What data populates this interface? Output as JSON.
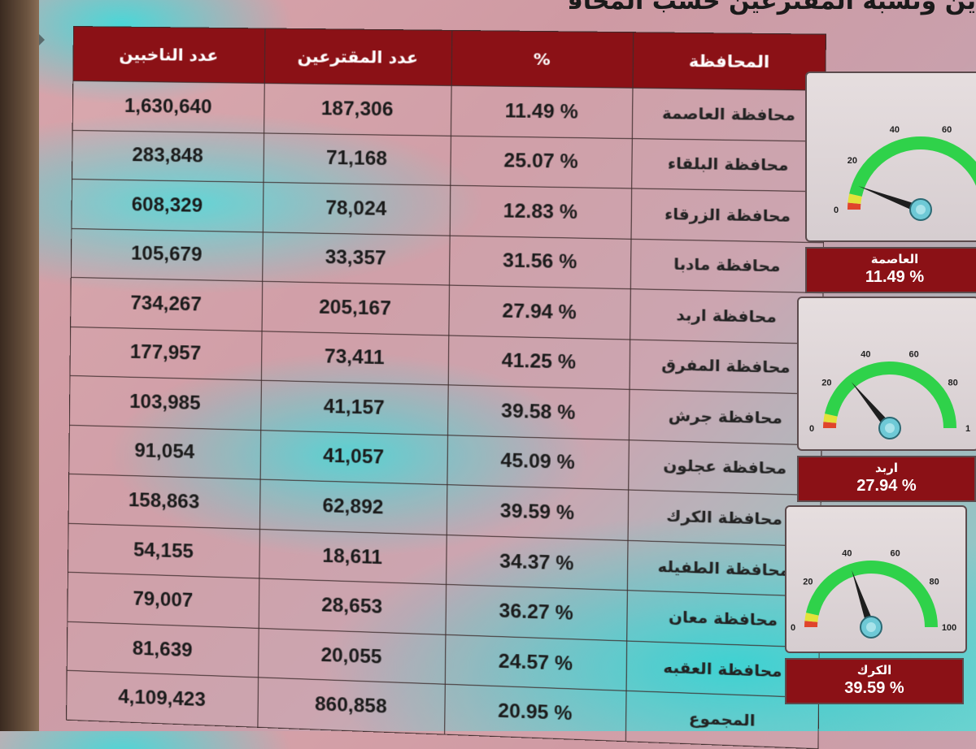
{
  "title_fragment": "ين ونسبة المقترعين حسب المحافظ",
  "table": {
    "headers": {
      "governorate": "المحافظة",
      "percent": "%",
      "voters": "عدد المقترعين",
      "registered": "عدد الناخبين"
    },
    "rows": [
      {
        "governorate": "محافظة العاصمة",
        "percent": "11.49 %",
        "voters": "187,306",
        "registered": "1,630,640"
      },
      {
        "governorate": "محافظة البلقاء",
        "percent": "25.07 %",
        "voters": "71,168",
        "registered": "283,848"
      },
      {
        "governorate": "محافظة الزرقاء",
        "percent": "12.83 %",
        "voters": "78,024",
        "registered": "608,329"
      },
      {
        "governorate": "محافظة مادبا",
        "percent": "31.56 %",
        "voters": "33,357",
        "registered": "105,679"
      },
      {
        "governorate": "محافظة اربد",
        "percent": "27.94 %",
        "voters": "205,167",
        "registered": "734,267"
      },
      {
        "governorate": "محافظة المفرق",
        "percent": "41.25 %",
        "voters": "73,411",
        "registered": "177,957"
      },
      {
        "governorate": "محافظة جرش",
        "percent": "39.58 %",
        "voters": "41,157",
        "registered": "103,985"
      },
      {
        "governorate": "محافظة عجلون",
        "percent": "45.09 %",
        "voters": "41,057",
        "registered": "91,054"
      },
      {
        "governorate": "محافظة الكرك",
        "percent": "39.59 %",
        "voters": "62,892",
        "registered": "158,863"
      },
      {
        "governorate": "محافظة الطفيله",
        "percent": "34.37 %",
        "voters": "18,611",
        "registered": "54,155"
      },
      {
        "governorate": "محافظة معان",
        "percent": "36.27 %",
        "voters": "28,653",
        "registered": "79,007"
      },
      {
        "governorate": "محافظة العقبه",
        "percent": "24.57 %",
        "voters": "20,055",
        "registered": "81,639"
      },
      {
        "governorate": "المجموع",
        "percent": "20.95 %",
        "voters": "860,858",
        "registered": "4,109,423"
      }
    ]
  },
  "gauges": [
    {
      "name": "العاصمة",
      "percent_label": "11.49 %",
      "value": 11.49,
      "ticks": [
        "0",
        "20",
        "40",
        "60"
      ]
    },
    {
      "name": "اربد",
      "percent_label": "27.94 %",
      "value": 27.94,
      "ticks": [
        "0",
        "20",
        "40",
        "60",
        "80",
        "1"
      ]
    },
    {
      "name": "الكرك",
      "percent_label": "39.59 %",
      "value": 39.59,
      "ticks": [
        "0",
        "20",
        "40",
        "60",
        "80",
        "100"
      ]
    }
  ],
  "colors": {
    "header_bg": "#8b1116",
    "gauge_green": "#2fd24a",
    "gauge_yellow": "#e3e23a",
    "gauge_red": "#e0452c",
    "needle": "#1e1e1e",
    "hub": "#6ec9d6"
  }
}
